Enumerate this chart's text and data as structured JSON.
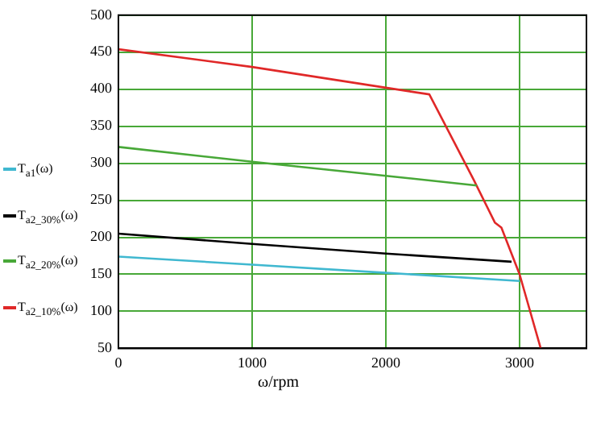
{
  "chart_data": {
    "type": "line",
    "xlabel": "ω/rpm",
    "xlim": [
      0,
      3500
    ],
    "xticks": [
      0,
      1000,
      2000,
      3000
    ],
    "ylim": [
      50,
      500
    ],
    "yticks": [
      50,
      100,
      150,
      200,
      250,
      300,
      350,
      400,
      450,
      500
    ],
    "grid": true,
    "legend": "left",
    "marker": "none",
    "line_style": "solid",
    "series": [
      {
        "name": "T$_{a1}$(ω)",
        "color": "#40b8d0",
        "x": [
          0,
          1000,
          2000,
          3000
        ],
        "values": [
          174,
          163,
          152,
          141
        ]
      },
      {
        "name": "T$_{a2_30%}$(ω)",
        "color": "#000000",
        "x": [
          0,
          1000,
          2000,
          2940
        ],
        "values": [
          205,
          191,
          178,
          167
        ]
      },
      {
        "name": "T$_{a2_20%}$(ω)",
        "color": "#48a838",
        "x": [
          0,
          1000,
          2000,
          2680
        ],
        "values": [
          322,
          302,
          283,
          270
        ]
      },
      {
        "name": "T$_{a2_10%}$(ω)",
        "color": "#e02828",
        "x": [
          0,
          1000,
          2000,
          2325,
          2656,
          2815,
          2864,
          3000,
          3158
        ],
        "values": [
          454,
          430,
          402,
          393,
          278,
          220,
          213,
          150,
          50
        ]
      }
    ]
  }
}
